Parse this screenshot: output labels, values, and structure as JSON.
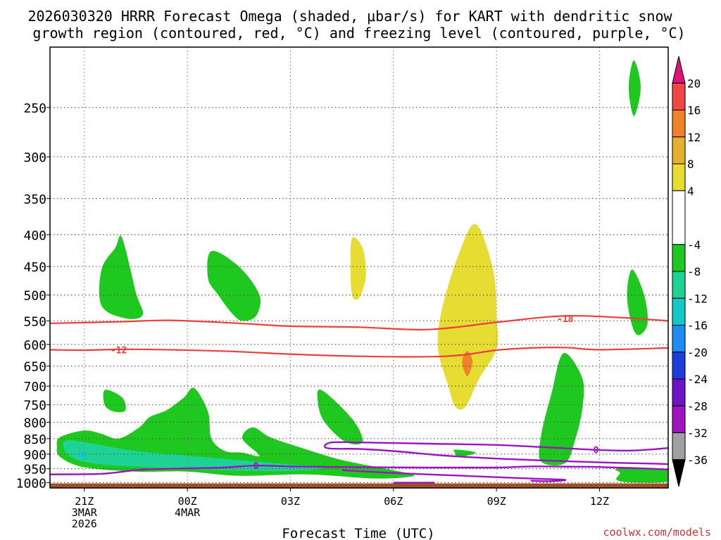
{
  "chart_data": {
    "type": "heatmap",
    "title_line1": "2026030320 HRRR Forecast Omega (shaded, μbar/s) for KART with dendritic snow",
    "title_line2": "growth region (contoured, red, °C) and freezing level (contoured, purple, °C)",
    "xlabel": "Forecast Time (UTC)",
    "watermark": "coolwx.com/models",
    "y_axis": {
      "units": "hPa",
      "ylim": [
        1020,
        200
      ],
      "ticks": [
        250,
        300,
        350,
        400,
        450,
        500,
        550,
        600,
        650,
        700,
        750,
        800,
        850,
        900,
        950,
        1000
      ],
      "tick_labels": [
        "250",
        "300",
        "350",
        "400",
        "450",
        "500",
        "550",
        "600",
        "650",
        "700",
        "750",
        "800",
        "850",
        "900",
        "950",
        "1000"
      ]
    },
    "x_axis": {
      "units": "hours from 20Z 3 Mar 2026",
      "xlim": [
        0,
        18
      ],
      "ticks": [
        {
          "hour": 1,
          "label1": "21Z",
          "label2": "3MAR",
          "label3": "2026"
        },
        {
          "hour": 4,
          "label1": "00Z",
          "label2": "4MAR",
          "label3": ""
        },
        {
          "hour": 7,
          "label1": "03Z",
          "label2": "",
          "label3": ""
        },
        {
          "hour": 10,
          "label1": "06Z",
          "label2": "",
          "label3": ""
        },
        {
          "hour": 13,
          "label1": "09Z",
          "label2": "",
          "label3": ""
        },
        {
          "hour": 16,
          "label1": "12Z",
          "label2": "",
          "label3": ""
        }
      ]
    },
    "colorbar": {
      "labels": [
        "20",
        "16",
        "12",
        "8",
        "4",
        "-4",
        "-8",
        "-12",
        "-16",
        "-20",
        "-24",
        "-28",
        "-32",
        "-36"
      ],
      "bins": [
        {
          "lo": 20,
          "hi": 24,
          "color": "#e0147a"
        },
        {
          "lo": 16,
          "hi": 20,
          "color": "#f04646"
        },
        {
          "lo": 12,
          "hi": 16,
          "color": "#f0822a"
        },
        {
          "lo": 8,
          "hi": 12,
          "color": "#e6af2d"
        },
        {
          "lo": 4,
          "hi": 8,
          "color": "#e6dc32"
        },
        {
          "lo": -4,
          "hi": 4,
          "color": "#ffffff"
        },
        {
          "lo": -8,
          "hi": -4,
          "color": "#1ec81e"
        },
        {
          "lo": -12,
          "hi": -8,
          "color": "#1ed296"
        },
        {
          "lo": -16,
          "hi": -12,
          "color": "#14c8c8"
        },
        {
          "lo": -20,
          "hi": -16,
          "color": "#1e8cf0"
        },
        {
          "lo": -24,
          "hi": -20,
          "color": "#1e3cdc"
        },
        {
          "lo": -28,
          "hi": -24,
          "color": "#6e14c8"
        },
        {
          "lo": -32,
          "hi": -28,
          "color": "#a014be"
        },
        {
          "lo": -36,
          "hi": -32,
          "color": "#a0a0a0"
        },
        {
          "lo": -40,
          "hi": -36,
          "color": "#000000"
        }
      ]
    },
    "omega_regions": [
      {
        "name": "omega-region-1",
        "color": "#1ec81e",
        "points": [
          [
            2.1,
            405
          ],
          [
            2.5,
            495
          ],
          [
            2.7,
            538
          ],
          [
            2.2,
            545
          ],
          [
            1.5,
            520
          ],
          [
            1.5,
            455
          ],
          [
            1.9,
            420
          ]
        ]
      },
      {
        "name": "omega-region-2",
        "color": "#1ec81e",
        "points": [
          [
            4.7,
            425
          ],
          [
            5.5,
            450
          ],
          [
            6.1,
            500
          ],
          [
            6.0,
            540
          ],
          [
            5.6,
            550
          ],
          [
            5.3,
            535
          ],
          [
            4.9,
            500
          ],
          [
            4.6,
            470
          ]
        ]
      },
      {
        "name": "omega-region-3",
        "color": "#e6dc32",
        "points": [
          [
            8.8,
            405
          ],
          [
            9.1,
            420
          ],
          [
            9.2,
            465
          ],
          [
            9.0,
            505
          ],
          [
            8.8,
            500
          ],
          [
            8.75,
            450
          ]
        ]
      },
      {
        "name": "omega-region-4",
        "color": "#e6dc32",
        "points": [
          [
            12.4,
            385
          ],
          [
            12.9,
            455
          ],
          [
            13.0,
            540
          ],
          [
            13.0,
            610
          ],
          [
            12.5,
            680
          ],
          [
            12.1,
            755
          ],
          [
            11.8,
            755
          ],
          [
            11.6,
            700
          ],
          [
            11.3,
            610
          ],
          [
            11.4,
            530
          ],
          [
            11.9,
            430
          ]
        ]
      },
      {
        "name": "omega-region-5",
        "color": "#f0822a",
        "points": [
          [
            12.15,
            615
          ],
          [
            12.3,
            640
          ],
          [
            12.15,
            675
          ],
          [
            12.0,
            640
          ]
        ]
      },
      {
        "name": "omega-region-6",
        "color": "#1ec81e",
        "points": [
          [
            17.0,
            210
          ],
          [
            17.2,
            232
          ],
          [
            17.0,
            258
          ],
          [
            16.85,
            232
          ]
        ]
      },
      {
        "name": "omega-region-7",
        "color": "#1ec81e",
        "points": [
          [
            16.95,
            455
          ],
          [
            17.3,
            500
          ],
          [
            17.4,
            555
          ],
          [
            17.15,
            580
          ],
          [
            16.95,
            560
          ],
          [
            16.8,
            500
          ]
        ]
      },
      {
        "name": "omega-region-8",
        "color": "#1ec81e",
        "points": [
          [
            1.6,
            710
          ],
          [
            2.1,
            730
          ],
          [
            2.2,
            765
          ],
          [
            1.9,
            770
          ],
          [
            1.6,
            752
          ]
        ]
      },
      {
        "name": "omega-region-9",
        "color": "#1ec81e",
        "points": [
          [
            7.9,
            710
          ],
          [
            8.8,
            790
          ],
          [
            9.1,
            860
          ],
          [
            8.6,
            860
          ],
          [
            8.0,
            800
          ],
          [
            7.8,
            745
          ]
        ]
      },
      {
        "name": "omega-region-10",
        "color": "#1ec81e",
        "points": [
          [
            14.95,
            620
          ],
          [
            15.5,
            680
          ],
          [
            15.5,
            760
          ],
          [
            15.3,
            850
          ],
          [
            15.0,
            930
          ],
          [
            14.3,
            925
          ],
          [
            14.3,
            840
          ],
          [
            14.6,
            720
          ]
        ]
      },
      {
        "name": "omega-region-11",
        "color": "#1ec81e",
        "points": [
          [
            11.8,
            885
          ],
          [
            12.4,
            895
          ],
          [
            11.9,
            910
          ],
          [
            11.8,
            897
          ]
        ]
      },
      {
        "name": "omega-region-12",
        "color": "#1ec81e",
        "points": [
          [
            16.5,
            950
          ],
          [
            17.5,
            948
          ],
          [
            18.0,
            955
          ],
          [
            18.0,
            995
          ],
          [
            17.0,
            1000
          ],
          [
            16.5,
            990
          ],
          [
            16.6,
            965
          ]
        ]
      },
      {
        "name": "omega-region-13",
        "color": "#1ec81e",
        "points": [
          [
            0.3,
            845
          ],
          [
            1.0,
            825
          ],
          [
            1.5,
            835
          ],
          [
            2.0,
            850
          ],
          [
            2.6,
            815
          ],
          [
            2.9,
            785
          ],
          [
            3.4,
            765
          ],
          [
            3.9,
            730
          ],
          [
            4.2,
            705
          ],
          [
            4.6,
            770
          ],
          [
            4.7,
            850
          ],
          [
            5.1,
            890
          ],
          [
            5.6,
            895
          ],
          [
            6.1,
            905
          ],
          [
            5.6,
            850
          ],
          [
            5.9,
            815
          ],
          [
            6.4,
            845
          ],
          [
            7.2,
            875
          ],
          [
            8.5,
            920
          ],
          [
            10.0,
            955
          ],
          [
            10.6,
            975
          ],
          [
            9.5,
            985
          ],
          [
            7.5,
            970
          ],
          [
            5.5,
            975
          ],
          [
            4.0,
            960
          ],
          [
            2.5,
            960
          ],
          [
            1.0,
            945
          ],
          [
            0.3,
            910
          ],
          [
            0.2,
            875
          ]
        ]
      },
      {
        "name": "omega-region-14",
        "color": "#1ed296",
        "points": [
          [
            0.5,
            855
          ],
          [
            1.2,
            865
          ],
          [
            2.5,
            890
          ],
          [
            4.0,
            905
          ],
          [
            5.5,
            920
          ],
          [
            7.0,
            935
          ],
          [
            8.0,
            945
          ],
          [
            7.0,
            958
          ],
          [
            5.0,
            955
          ],
          [
            3.0,
            945
          ],
          [
            1.5,
            935
          ],
          [
            0.7,
            915
          ],
          [
            0.4,
            880
          ]
        ]
      },
      {
        "name": "omega-region-15",
        "color": "#14c8c8",
        "points": [
          [
            0.85,
            890
          ],
          [
            1.05,
            895
          ],
          [
            1.0,
            912
          ],
          [
            0.85,
            908
          ]
        ]
      }
    ],
    "temperature_contours": [
      {
        "name": "contour-minus18",
        "value": -18,
        "label": "-18",
        "label_at": [
          15.0,
          545
        ],
        "points": [
          [
            0,
            555
          ],
          [
            2,
            552
          ],
          [
            3.5,
            549
          ],
          [
            5.5,
            555
          ],
          [
            7,
            561
          ],
          [
            9,
            563
          ],
          [
            11,
            568
          ],
          [
            13,
            553
          ],
          [
            14.5,
            542
          ],
          [
            15.5,
            540
          ],
          [
            17,
            545
          ],
          [
            18,
            550
          ]
        ]
      },
      {
        "name": "contour-minus12",
        "value": -12,
        "label": "-12",
        "label_at": [
          2.0,
          612
        ],
        "points": [
          [
            0,
            612
          ],
          [
            1,
            613
          ],
          [
            2.5,
            611
          ],
          [
            5,
            615
          ],
          [
            7,
            622
          ],
          [
            9,
            627
          ],
          [
            11,
            628
          ],
          [
            12,
            624
          ],
          [
            13,
            613
          ],
          [
            14,
            608
          ],
          [
            15,
            607
          ],
          [
            16,
            612
          ],
          [
            18,
            608
          ]
        ]
      }
    ],
    "freezing_contours": [
      {
        "name": "freezing-level-1",
        "value": 0,
        "label": "0",
        "label_at": [
          15.9,
          885
        ],
        "points": [
          [
            18,
            880
          ],
          [
            17,
            888
          ],
          [
            16.1,
            887
          ],
          [
            14.5,
            878
          ],
          [
            13,
            870
          ],
          [
            11,
            866
          ],
          [
            9,
            862
          ],
          [
            8.2,
            862
          ],
          [
            8.0,
            875
          ],
          [
            8.2,
            882
          ],
          [
            9,
            883
          ],
          [
            10,
            890
          ],
          [
            11.5,
            905
          ],
          [
            13,
            915
          ],
          [
            14.5,
            922
          ],
          [
            16,
            928
          ],
          [
            17.5,
            932
          ],
          [
            18,
            934
          ]
        ]
      },
      {
        "name": "freezing-level-2",
        "value": 0,
        "label": "0",
        "label_at": [
          6.0,
          939
        ],
        "points": [
          [
            0,
            970
          ],
          [
            1.5,
            968
          ],
          [
            2.5,
            955
          ],
          [
            3.5,
            950
          ],
          [
            5,
            946
          ],
          [
            6.0,
            939
          ],
          [
            7,
            942
          ],
          [
            8.5,
            944
          ],
          [
            11,
            946
          ],
          [
            13,
            946
          ],
          [
            14,
            942
          ],
          [
            15.3,
            943
          ],
          [
            16,
            944
          ],
          [
            17.5,
            950
          ],
          [
            18,
            953
          ]
        ]
      },
      {
        "name": "freezing-level-3",
        "value": 0,
        "label": "",
        "label_at": null,
        "points": [
          [
            8.5,
            955
          ],
          [
            10,
            965
          ],
          [
            12,
            975
          ],
          [
            14,
            985
          ],
          [
            15,
            990
          ],
          [
            14.5,
            995
          ],
          [
            14.0,
            993
          ]
        ]
      },
      {
        "name": "freezing-level-4",
        "value": 0,
        "label": "",
        "label_at": null,
        "points": [
          [
            10.0,
            1000
          ],
          [
            11.2,
            1000
          ]
        ]
      }
    ],
    "terrain": {
      "surface_hpa": 1003,
      "bottom_hpa": 1020,
      "color": "#a05028"
    }
  }
}
